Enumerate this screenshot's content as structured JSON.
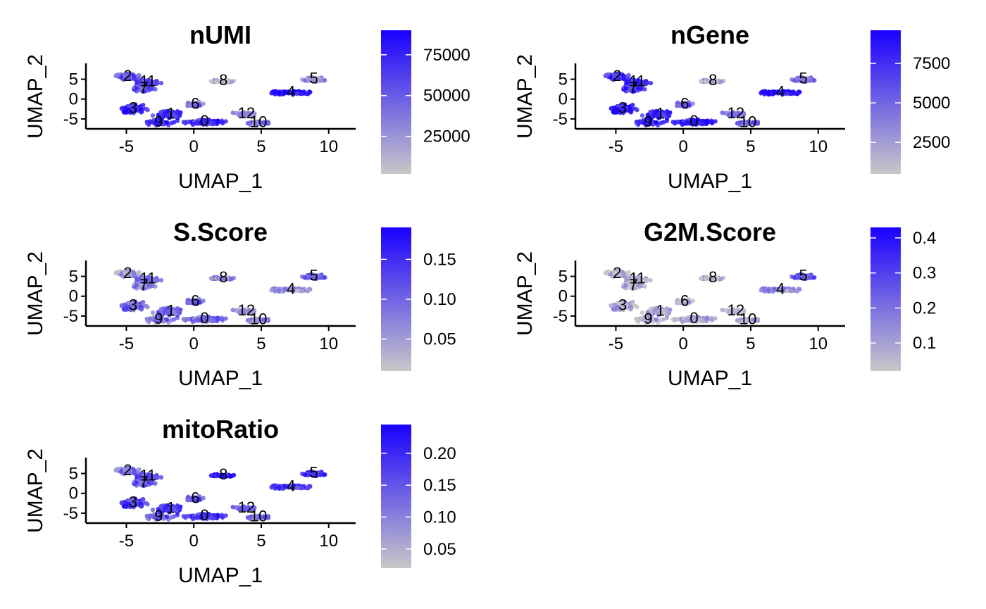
{
  "colors": {
    "low": "#C8C8C8",
    "high": "#1A00FF",
    "axis": "#000000"
  },
  "chart_data": [
    {
      "type": "scatter",
      "title": "nUMI",
      "xlabel": "UMAP_1",
      "ylabel": "UMAP_2",
      "xlim": [
        -8,
        12
      ],
      "ylim": [
        -7.5,
        9
      ],
      "x_ticks": [
        -5,
        0,
        5,
        10
      ],
      "y_ticks": [
        -5,
        0,
        5
      ],
      "x_tick_labels": [
        "-5",
        "0",
        "5",
        "10"
      ],
      "y_tick_labels": [
        "-5",
        "0",
        "5"
      ],
      "color_scale": {
        "min": 2000,
        "max": 90000,
        "ticks": [
          25000,
          50000,
          75000
        ],
        "tick_labels": [
          "25000",
          "50000",
          "75000"
        ]
      },
      "cluster_labels": [
        {
          "label": "0",
          "x": 0.8,
          "y": -5.8
        },
        {
          "label": "1",
          "x": -1.7,
          "y": -3.9
        },
        {
          "label": "2",
          "x": -4.9,
          "y": 5.6
        },
        {
          "label": "3",
          "x": -4.5,
          "y": -2.5
        },
        {
          "label": "4",
          "x": 7.2,
          "y": 1.6
        },
        {
          "label": "5",
          "x": 8.9,
          "y": 5.0
        },
        {
          "label": "6",
          "x": 0.1,
          "y": -1.4
        },
        {
          "label": "7",
          "x": -3.7,
          "y": 2.6
        },
        {
          "label": "8",
          "x": 2.2,
          "y": 4.5
        },
        {
          "label": "9",
          "x": -2.6,
          "y": -5.9
        },
        {
          "label": "10",
          "x": 4.8,
          "y": -6.0
        },
        {
          "label": "11",
          "x": -3.4,
          "y": 4.3
        },
        {
          "label": "12",
          "x": 3.9,
          "y": -3.8
        }
      ],
      "cluster_intensity": {
        "0": 0.75,
        "1": 0.78,
        "2": 0.55,
        "3": 0.82,
        "4": 0.93,
        "5": 0.3,
        "6": 0.45,
        "7": 0.6,
        "8": 0.08,
        "9": 0.85,
        "10": 0.4,
        "11": 0.65,
        "12": 0.35
      }
    },
    {
      "type": "scatter",
      "title": "nGene",
      "xlabel": "UMAP_1",
      "ylabel": "UMAP_2",
      "xlim": [
        -8,
        12
      ],
      "ylim": [
        -7.5,
        9
      ],
      "x_ticks": [
        -5,
        0,
        5,
        10
      ],
      "y_ticks": [
        -5,
        0,
        5
      ],
      "x_tick_labels": [
        "-5",
        "0",
        "5",
        "10"
      ],
      "y_tick_labels": [
        "-5",
        "0",
        "5"
      ],
      "color_scale": {
        "min": 500,
        "max": 9600,
        "ticks": [
          2500,
          5000,
          7500
        ],
        "tick_labels": [
          "2500",
          "5000",
          "7500"
        ]
      },
      "cluster_labels": [
        {
          "label": "0",
          "x": 0.8,
          "y": -5.8
        },
        {
          "label": "1",
          "x": -1.7,
          "y": -3.9
        },
        {
          "label": "2",
          "x": -4.9,
          "y": 5.6
        },
        {
          "label": "3",
          "x": -4.5,
          "y": -2.5
        },
        {
          "label": "4",
          "x": 7.2,
          "y": 1.6
        },
        {
          "label": "5",
          "x": 8.9,
          "y": 5.0
        },
        {
          "label": "6",
          "x": 0.1,
          "y": -1.4
        },
        {
          "label": "7",
          "x": -3.7,
          "y": 2.6
        },
        {
          "label": "8",
          "x": 2.2,
          "y": 4.5
        },
        {
          "label": "9",
          "x": -2.6,
          "y": -5.9
        },
        {
          "label": "10",
          "x": 4.8,
          "y": -6.0
        },
        {
          "label": "11",
          "x": -3.4,
          "y": 4.3
        },
        {
          "label": "12",
          "x": 3.9,
          "y": -3.8
        }
      ],
      "cluster_intensity": {
        "0": 0.85,
        "1": 0.82,
        "2": 0.72,
        "3": 0.88,
        "4": 0.95,
        "5": 0.45,
        "6": 0.55,
        "7": 0.75,
        "8": 0.15,
        "9": 0.88,
        "10": 0.5,
        "11": 0.8,
        "12": 0.45
      }
    },
    {
      "type": "scatter",
      "title": "S.Score",
      "xlabel": "UMAP_1",
      "ylabel": "UMAP_2",
      "xlim": [
        -8,
        12
      ],
      "ylim": [
        -7.5,
        9
      ],
      "x_ticks": [
        -5,
        0,
        5,
        10
      ],
      "y_ticks": [
        -5,
        0,
        5
      ],
      "x_tick_labels": [
        "-5",
        "0",
        "5",
        "10"
      ],
      "y_tick_labels": [
        "-5",
        "0",
        "5"
      ],
      "color_scale": {
        "min": 0.01,
        "max": 0.19,
        "ticks": [
          0.05,
          0.1,
          0.15
        ],
        "tick_labels": [
          "0.05",
          "0.10",
          "0.15"
        ]
      },
      "cluster_labels": [
        {
          "label": "0",
          "x": 0.8,
          "y": -5.8
        },
        {
          "label": "1",
          "x": -1.7,
          "y": -3.9
        },
        {
          "label": "2",
          "x": -4.9,
          "y": 5.6
        },
        {
          "label": "3",
          "x": -4.5,
          "y": -2.5
        },
        {
          "label": "4",
          "x": 7.2,
          "y": 1.6
        },
        {
          "label": "5",
          "x": 8.9,
          "y": 5.0
        },
        {
          "label": "6",
          "x": 0.1,
          "y": -1.4
        },
        {
          "label": "7",
          "x": -3.7,
          "y": 2.6
        },
        {
          "label": "8",
          "x": 2.2,
          "y": 4.5
        },
        {
          "label": "9",
          "x": -2.6,
          "y": -5.9
        },
        {
          "label": "10",
          "x": 4.8,
          "y": -6.0
        },
        {
          "label": "11",
          "x": -3.4,
          "y": 4.3
        },
        {
          "label": "12",
          "x": 3.9,
          "y": -3.8
        }
      ],
      "cluster_intensity": {
        "0": 0.45,
        "1": 0.5,
        "2": 0.2,
        "3": 0.5,
        "4": 0.25,
        "5": 0.55,
        "6": 0.55,
        "7": 0.35,
        "8": 0.35,
        "9": 0.45,
        "10": 0.3,
        "11": 0.45,
        "12": 0.3
      }
    },
    {
      "type": "scatter",
      "title": "G2M.Score",
      "xlabel": "UMAP_1",
      "ylabel": "UMAP_2",
      "xlim": [
        -8,
        12
      ],
      "ylim": [
        -7.5,
        9
      ],
      "x_ticks": [
        -5,
        0,
        5,
        10
      ],
      "y_ticks": [
        -5,
        0,
        5
      ],
      "x_tick_labels": [
        "-5",
        "0",
        "5",
        "10"
      ],
      "y_tick_labels": [
        "-5",
        "0",
        "5"
      ],
      "color_scale": {
        "min": 0.02,
        "max": 0.43,
        "ticks": [
          0.1,
          0.2,
          0.3,
          0.4
        ],
        "tick_labels": [
          "0.1",
          "0.2",
          "0.3",
          "0.4"
        ]
      },
      "cluster_labels": [
        {
          "label": "0",
          "x": 0.8,
          "y": -5.8
        },
        {
          "label": "1",
          "x": -1.7,
          "y": -3.9
        },
        {
          "label": "2",
          "x": -4.9,
          "y": 5.6
        },
        {
          "label": "3",
          "x": -4.5,
          "y": -2.5
        },
        {
          "label": "4",
          "x": 7.2,
          "y": 1.6
        },
        {
          "label": "5",
          "x": 8.9,
          "y": 5.0
        },
        {
          "label": "6",
          "x": 0.1,
          "y": -1.4
        },
        {
          "label": "7",
          "x": -3.7,
          "y": 2.6
        },
        {
          "label": "8",
          "x": 2.2,
          "y": 4.5
        },
        {
          "label": "9",
          "x": -2.6,
          "y": -5.9
        },
        {
          "label": "10",
          "x": 4.8,
          "y": -6.0
        },
        {
          "label": "11",
          "x": -3.4,
          "y": 4.3
        },
        {
          "label": "12",
          "x": 3.9,
          "y": -3.8
        }
      ],
      "cluster_intensity": {
        "0": 0.12,
        "1": 0.15,
        "2": 0.05,
        "3": 0.15,
        "4": 0.3,
        "5": 0.6,
        "6": 0.12,
        "7": 0.1,
        "8": 0.08,
        "9": 0.12,
        "10": 0.1,
        "11": 0.1,
        "12": 0.1
      }
    },
    {
      "type": "scatter",
      "title": "mitoRatio",
      "xlabel": "UMAP_1",
      "ylabel": "UMAP_2",
      "xlim": [
        -8,
        12
      ],
      "ylim": [
        -7.5,
        9
      ],
      "x_ticks": [
        -5,
        0,
        5,
        10
      ],
      "y_ticks": [
        -5,
        0,
        5
      ],
      "x_tick_labels": [
        "-5",
        "0",
        "5",
        "10"
      ],
      "y_tick_labels": [
        "-5",
        "0",
        "5"
      ],
      "color_scale": {
        "min": 0.02,
        "max": 0.245,
        "ticks": [
          0.05,
          0.1,
          0.15,
          0.2
        ],
        "tick_labels": [
          "0.05",
          "0.10",
          "0.15",
          "0.20"
        ]
      },
      "cluster_labels": [
        {
          "label": "0",
          "x": 0.8,
          "y": -5.8
        },
        {
          "label": "1",
          "x": -1.7,
          "y": -3.9
        },
        {
          "label": "2",
          "x": -4.9,
          "y": 5.6
        },
        {
          "label": "3",
          "x": -4.5,
          "y": -2.5
        },
        {
          "label": "4",
          "x": 7.2,
          "y": 1.6
        },
        {
          "label": "5",
          "x": 8.9,
          "y": 5.0
        },
        {
          "label": "6",
          "x": 0.1,
          "y": -1.4
        },
        {
          "label": "7",
          "x": -3.7,
          "y": 2.6
        },
        {
          "label": "8",
          "x": 2.2,
          "y": 4.5
        },
        {
          "label": "9",
          "x": -2.6,
          "y": -5.9
        },
        {
          "label": "10",
          "x": 4.8,
          "y": -6.0
        },
        {
          "label": "11",
          "x": -3.4,
          "y": 4.3
        },
        {
          "label": "12",
          "x": 3.9,
          "y": -3.8
        }
      ],
      "cluster_intensity": {
        "0": 0.7,
        "1": 0.72,
        "2": 0.4,
        "3": 0.7,
        "4": 0.7,
        "5": 0.8,
        "6": 0.6,
        "7": 0.55,
        "8": 0.95,
        "9": 0.55,
        "10": 0.45,
        "11": 0.6,
        "12": 0.55
      }
    }
  ]
}
